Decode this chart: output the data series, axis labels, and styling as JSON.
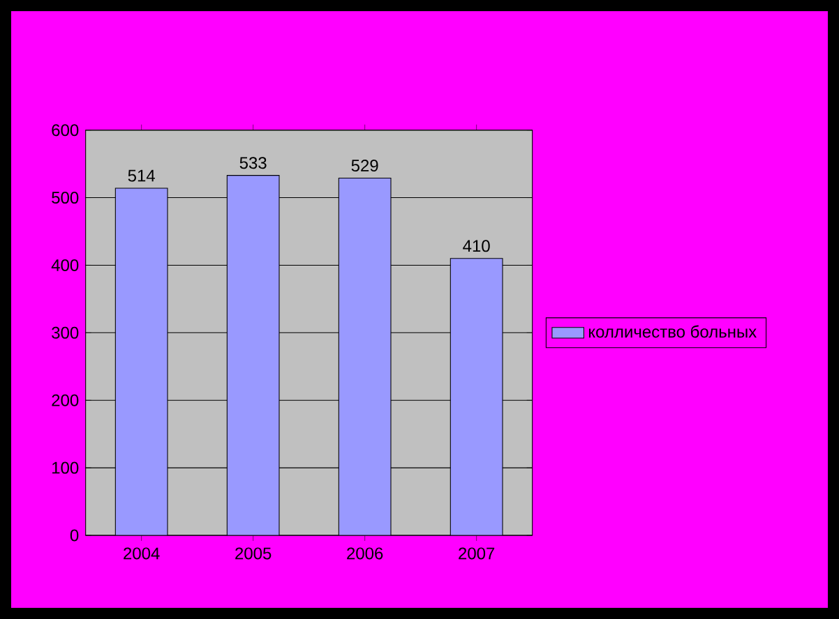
{
  "chart_data": {
    "type": "bar",
    "categories": [
      "2004",
      "2005",
      "2006",
      "2007"
    ],
    "series": [
      {
        "name": "колличество больных",
        "color": "#9999ff",
        "values": [
          514,
          533,
          529,
          410
        ]
      }
    ],
    "ylim": [
      0,
      600
    ],
    "yticks": [
      0,
      100,
      200,
      300,
      400,
      500,
      600
    ],
    "grid": "y",
    "legend": "right",
    "data_labels": true
  }
}
